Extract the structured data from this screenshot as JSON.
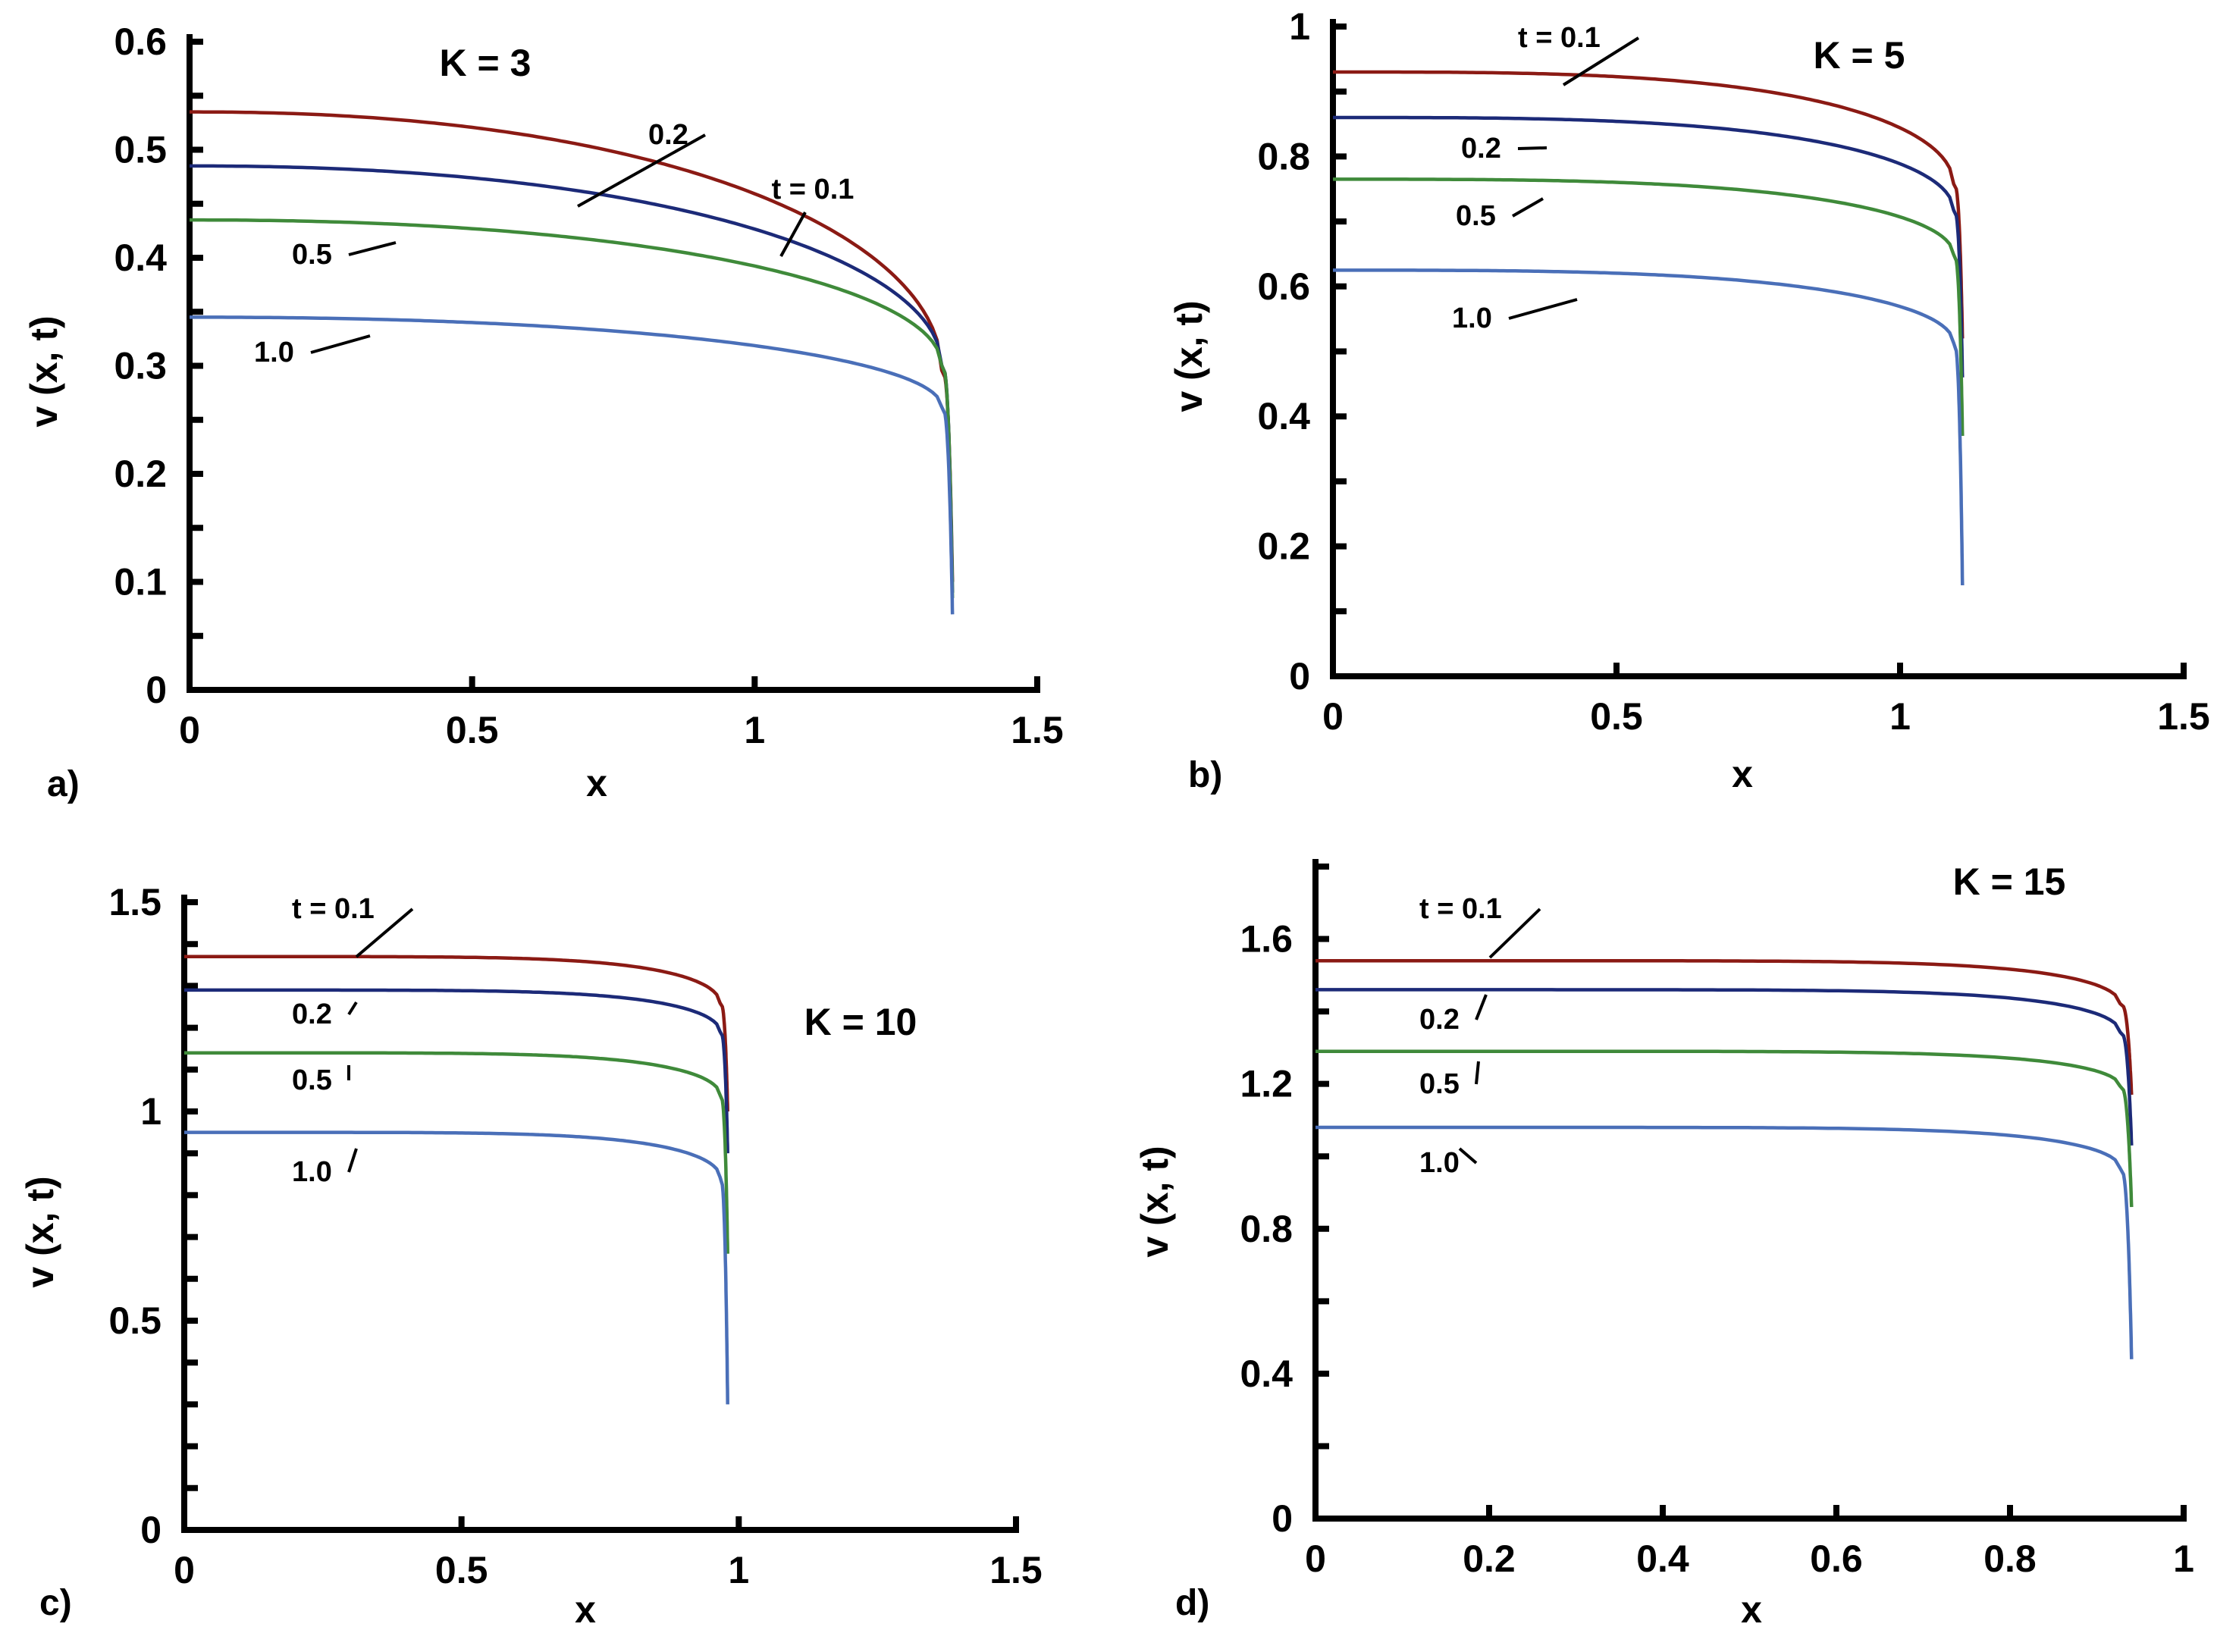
{
  "figure": {
    "colors": {
      "t=0.1": "#8b1a14",
      "0.2": "#1c2a78",
      "0.5": "#3f8a3a",
      "1.0": "#4a6fb8"
    },
    "ylabel": "v (x, t)",
    "xlabel": "x"
  },
  "chart_data": [
    {
      "type": "line",
      "panel": "a)",
      "title": "K = 3",
      "xlabel": "x",
      "ylabel": "v (x, t)",
      "xlim": [
        0,
        1.5
      ],
      "ylim": [
        0,
        0.6
      ],
      "xticks": [
        "0",
        "0.5",
        "1",
        "1.5"
      ],
      "yticks": [
        "0",
        "0.1",
        "0.2",
        "0.3",
        "0.4",
        "0.5",
        "0.6"
      ],
      "x_end": 1.35,
      "series": [
        {
          "name": "t = 0.1",
          "v0": 0.535,
          "v_end": 0.1,
          "label": "t = 0.1"
        },
        {
          "name": "0.2",
          "v0": 0.485,
          "v_end": 0.09,
          "label": "0.2"
        },
        {
          "name": "0.5",
          "v0": 0.435,
          "v_end": 0.085,
          "label": "0.5"
        },
        {
          "name": "1.0",
          "v0": 0.345,
          "v_end": 0.07,
          "label": "1.0"
        }
      ]
    },
    {
      "type": "line",
      "panel": "b)",
      "title": "K = 5",
      "xlabel": "x",
      "ylabel": "v (x, t)",
      "xlim": [
        0,
        1.5
      ],
      "ylim": [
        0,
        1
      ],
      "xticks": [
        "0",
        "0.5",
        "1",
        "1.5"
      ],
      "yticks": [
        "0",
        "0.2",
        "0.4",
        "0.6",
        "0.8",
        "1"
      ],
      "x_end": 1.11,
      "series": [
        {
          "name": "t = 0.1",
          "v0": 0.93,
          "v_end": 0.52,
          "label": "t = 0.1"
        },
        {
          "name": "0.2",
          "v0": 0.86,
          "v_end": 0.46,
          "label": "0.2"
        },
        {
          "name": "0.5",
          "v0": 0.765,
          "v_end": 0.37,
          "label": "0.5"
        },
        {
          "name": "1.0",
          "v0": 0.625,
          "v_end": 0.14,
          "label": "1.0"
        }
      ]
    },
    {
      "type": "line",
      "panel": "c)",
      "title": "K = 10",
      "xlabel": "x",
      "ylabel": "v (x, t)",
      "xlim": [
        0,
        1.5
      ],
      "ylim": [
        0,
        1.5
      ],
      "xticks": [
        "0",
        "0.5",
        "1",
        "1.5"
      ],
      "yticks": [
        "0",
        "0.5",
        "1",
        "1.5"
      ],
      "x_end": 0.98,
      "series": [
        {
          "name": "t = 0.1",
          "v0": 1.37,
          "v_end": 1.0,
          "label": "t = 0.1"
        },
        {
          "name": "0.2",
          "v0": 1.29,
          "v_end": 0.9,
          "label": "0.2"
        },
        {
          "name": "0.5",
          "v0": 1.14,
          "v_end": 0.66,
          "label": "0.5"
        },
        {
          "name": "1.0",
          "v0": 0.95,
          "v_end": 0.3,
          "label": "1.0"
        }
      ]
    },
    {
      "type": "line",
      "panel": "d)",
      "title": "K = 15",
      "xlabel": "x",
      "ylabel": "v (x, t)",
      "xlim": [
        0,
        1
      ],
      "ylim": [
        0,
        1.8
      ],
      "xticks": [
        "0",
        "0.2",
        "0.4",
        "0.6",
        "0.8",
        "1"
      ],
      "yticks": [
        "0",
        "0.4",
        "0.8",
        "1.2",
        "1.6"
      ],
      "x_end": 0.94,
      "series": [
        {
          "name": "t = 0.1",
          "v0": 1.54,
          "v_end": 1.17,
          "label": "t = 0.1"
        },
        {
          "name": "0.2",
          "v0": 1.46,
          "v_end": 1.03,
          "label": "0.2"
        },
        {
          "name": "0.5",
          "v0": 1.29,
          "v_end": 0.86,
          "label": "0.5"
        },
        {
          "name": "1.0",
          "v0": 1.08,
          "v_end": 0.44,
          "label": "1.0"
        }
      ]
    }
  ]
}
